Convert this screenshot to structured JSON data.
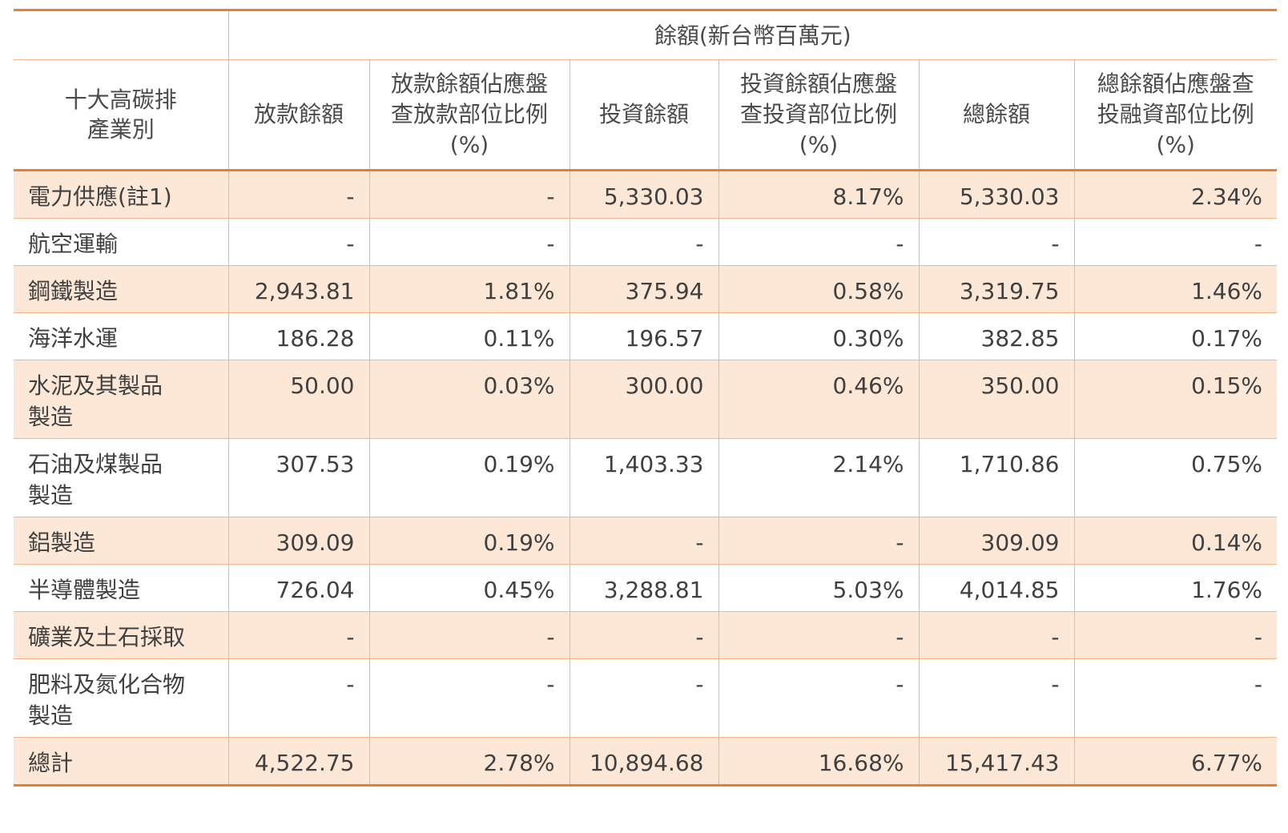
{
  "header": {
    "group_label": "餘額(新台幣百萬元)",
    "industry_label": "十大高碳排\n產業別",
    "columns": [
      "放款餘額",
      "放款餘額佔應盤\n查放款部位比例\n(%)",
      "投資餘額",
      "投資餘額佔應盤\n查投資部位比例\n(%)",
      "總餘額",
      "總餘額佔應盤查\n投融資部位比例\n(%)"
    ]
  },
  "rows": [
    {
      "industry": "電力供應(註1)",
      "values": [
        "-",
        "-",
        "5,330.03",
        "8.17%",
        "5,330.03",
        "2.34%"
      ]
    },
    {
      "industry": "航空運輸",
      "values": [
        "-",
        "-",
        "-",
        "-",
        "-",
        "-"
      ]
    },
    {
      "industry": "鋼鐵製造",
      "values": [
        "2,943.81",
        "1.81%",
        "375.94",
        "0.58%",
        "3,319.75",
        "1.46%"
      ]
    },
    {
      "industry": "海洋水運",
      "values": [
        "186.28",
        "0.11%",
        "196.57",
        "0.30%",
        "382.85",
        "0.17%"
      ]
    },
    {
      "industry": "水泥及其製品\n製造",
      "values": [
        "50.00",
        "0.03%",
        "300.00",
        "0.46%",
        "350.00",
        "0.15%"
      ]
    },
    {
      "industry": "石油及煤製品\n製造",
      "values": [
        "307.53",
        "0.19%",
        "1,403.33",
        "2.14%",
        "1,710.86",
        "0.75%"
      ]
    },
    {
      "industry": "鋁製造",
      "values": [
        "309.09",
        "0.19%",
        "-",
        "-",
        "309.09",
        "0.14%"
      ]
    },
    {
      "industry": "半導體製造",
      "values": [
        "726.04",
        "0.45%",
        "3,288.81",
        "5.03%",
        "4,014.85",
        "1.76%"
      ]
    },
    {
      "industry": "礦業及土石採取",
      "values": [
        "-",
        "-",
        "-",
        "-",
        "-",
        "-"
      ]
    },
    {
      "industry": "肥料及氮化合物\n製造",
      "values": [
        "-",
        "-",
        "-",
        "-",
        "-",
        "-"
      ]
    }
  ],
  "total": {
    "label": "總計",
    "values": [
      "4,522.75",
      "2.78%",
      "10,894.68",
      "16.68%",
      "15,417.43",
      "6.77%"
    ]
  },
  "colors": {
    "accent": "#ef7d30",
    "row_shade": "#fde8d7",
    "grid": "#f5b48a",
    "text": "#404040"
  }
}
